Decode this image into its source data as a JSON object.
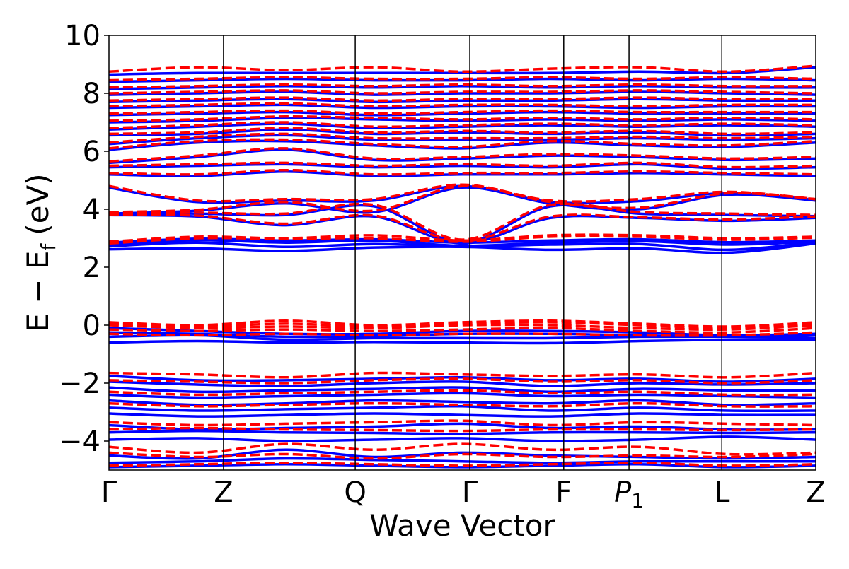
{
  "chart_data": {
    "type": "line",
    "title": "",
    "xlabel": "Wave Vector",
    "ylabel": "E − E",
    "ylabel_subscript": "f",
    "ylabel_unit": "(eV)",
    "ylim": [
      -5,
      10
    ],
    "yticks": [
      -4,
      -2,
      0,
      2,
      4,
      6,
      8,
      10
    ],
    "ytick_labels": [
      "−4",
      "−2",
      "0",
      "2",
      "4",
      "6",
      "8",
      "10"
    ],
    "k_points": [
      {
        "label": "Γ",
        "x": 0.0
      },
      {
        "label": "Z",
        "x": 1.0
      },
      {
        "label": "Q",
        "x": 2.15
      },
      {
        "label": "Γ",
        "x": 3.15
      },
      {
        "label": "F",
        "x": 3.97
      },
      {
        "label": "P",
        "sub": "1",
        "italic": true,
        "x": 4.54
      },
      {
        "label": "L",
        "x": 5.35
      },
      {
        "label": "Z",
        "x": 6.17
      }
    ],
    "xlim": [
      0,
      6.17
    ],
    "grid": false,
    "legend": "none",
    "colors": {
      "solid": "#0000ff",
      "dashed": "#ff0000",
      "frame": "#000000"
    },
    "series": [
      {
        "style": "solid",
        "color": "#0000ff",
        "bands": [
          [
            2.62,
            2.65,
            2.56,
            2.68,
            2.7,
            2.6,
            2.65,
            2.5,
            2.82
          ],
          [
            2.72,
            2.85,
            2.7,
            2.8,
            2.72,
            2.78,
            2.8,
            2.6,
            2.86
          ],
          [
            2.78,
            2.93,
            2.85,
            2.92,
            2.74,
            2.85,
            2.9,
            2.78,
            2.88
          ],
          [
            2.85,
            2.98,
            2.92,
            2.96,
            2.85,
            2.92,
            2.96,
            2.86,
            2.92
          ],
          [
            3.8,
            3.75,
            3.45,
            3.75,
            2.82,
            3.7,
            3.7,
            3.6,
            3.7
          ],
          [
            3.82,
            3.85,
            3.8,
            4.1,
            2.85,
            4.1,
            3.85,
            3.8,
            3.76
          ],
          [
            3.85,
            3.95,
            4.2,
            3.9,
            4.75,
            4.2,
            4.0,
            4.5,
            4.3
          ],
          [
            4.75,
            4.25,
            4.3,
            4.3,
            4.8,
            4.25,
            4.28,
            4.55,
            4.32
          ],
          [
            -0.1,
            -0.2,
            -0.3,
            -0.3,
            -0.2,
            -0.2,
            -0.25,
            -0.35,
            -0.3
          ],
          [
            -0.25,
            -0.3,
            -0.4,
            -0.38,
            -0.3,
            -0.3,
            -0.35,
            -0.4,
            -0.35
          ],
          [
            -0.4,
            -0.35,
            -0.5,
            -0.45,
            -0.45,
            -0.45,
            -0.4,
            -0.4,
            -0.45
          ],
          [
            -0.6,
            -0.55,
            -0.6,
            -0.58,
            -0.6,
            -0.62,
            -0.55,
            -0.5,
            -0.5
          ],
          [
            -1.75,
            -1.9,
            -1.9,
            -1.85,
            -1.8,
            -1.9,
            -1.85,
            -1.95,
            -1.85
          ],
          [
            -1.95,
            -2.05,
            -2.1,
            -2.0,
            -1.95,
            -2.1,
            -2.0,
            -2.05,
            -2.0
          ],
          [
            -2.15,
            -2.3,
            -2.25,
            -2.2,
            -2.15,
            -2.3,
            -2.2,
            -2.25,
            -2.25
          ],
          [
            -2.4,
            -2.5,
            -2.45,
            -2.4,
            -2.35,
            -2.45,
            -2.4,
            -2.45,
            -2.5
          ],
          [
            -2.6,
            -2.75,
            -2.7,
            -2.6,
            -2.65,
            -2.7,
            -2.6,
            -2.75,
            -2.7
          ],
          [
            -2.85,
            -2.95,
            -2.9,
            -2.85,
            -2.8,
            -2.95,
            -2.85,
            -2.95,
            -2.95
          ],
          [
            -3.05,
            -3.15,
            -3.1,
            -3.05,
            -3.1,
            -3.15,
            -3.05,
            -3.1,
            -3.1
          ],
          [
            -3.45,
            -3.6,
            -3.55,
            -3.5,
            -3.4,
            -3.55,
            -3.5,
            -3.6,
            -3.6
          ],
          [
            -3.7,
            -3.65,
            -3.7,
            -3.72,
            -3.75,
            -3.7,
            -3.7,
            -3.72,
            -3.7
          ],
          [
            -3.95,
            -3.9,
            -4.0,
            -3.95,
            -3.9,
            -4.0,
            -3.95,
            -3.85,
            -3.95
          ],
          [
            -4.5,
            -4.6,
            -4.3,
            -4.55,
            -4.4,
            -4.5,
            -4.55,
            -4.6,
            -4.55
          ],
          [
            -4.75,
            -4.7,
            -4.6,
            -4.65,
            -4.7,
            -4.75,
            -4.7,
            -4.7,
            -4.7
          ],
          [
            -4.9,
            -4.85,
            -4.8,
            -4.85,
            -4.9,
            -4.85,
            -4.8,
            -4.9,
            -4.85
          ],
          [
            5.2,
            5.15,
            5.3,
            5.15,
            5.2,
            5.2,
            5.25,
            5.2,
            5.15
          ],
          [
            5.45,
            5.5,
            5.55,
            5.45,
            5.5,
            5.45,
            5.55,
            5.4,
            5.45
          ],
          [
            5.6,
            5.8,
            6.05,
            5.7,
            5.75,
            5.85,
            5.8,
            5.7,
            5.75
          ],
          [
            6.05,
            6.3,
            6.35,
            6.2,
            6.1,
            6.3,
            6.2,
            6.15,
            6.3
          ],
          [
            6.25,
            6.45,
            6.55,
            6.4,
            6.4,
            6.4,
            6.45,
            6.4,
            6.45
          ],
          [
            6.55,
            6.6,
            6.75,
            6.6,
            6.65,
            6.6,
            6.65,
            6.55,
            6.6
          ],
          [
            6.75,
            6.85,
            6.95,
            6.8,
            6.85,
            6.9,
            6.85,
            6.9,
            6.85
          ],
          [
            7.0,
            7.05,
            7.15,
            7.1,
            7.05,
            7.1,
            7.05,
            7.1,
            7.05
          ],
          [
            7.25,
            7.3,
            7.35,
            7.25,
            7.3,
            7.35,
            7.3,
            7.3,
            7.3
          ],
          [
            7.5,
            7.55,
            7.6,
            7.5,
            7.55,
            7.55,
            7.5,
            7.55,
            7.55
          ],
          [
            7.7,
            7.75,
            7.8,
            7.7,
            7.75,
            7.75,
            7.8,
            7.75,
            7.75
          ],
          [
            7.95,
            8.0,
            8.05,
            7.95,
            8.0,
            8.0,
            8.05,
            8.0,
            7.95
          ],
          [
            8.15,
            8.2,
            8.25,
            8.2,
            8.25,
            8.2,
            8.25,
            8.2,
            8.2
          ],
          [
            8.4,
            8.45,
            8.5,
            8.45,
            8.45,
            8.5,
            8.45,
            8.5,
            8.45
          ],
          [
            8.65,
            8.7,
            8.7,
            8.7,
            8.7,
            8.7,
            8.75,
            8.7,
            8.9
          ]
        ]
      },
      {
        "style": "dashed",
        "color": "#ff0000",
        "bands": [
          [
            2.82,
            3.0,
            2.98,
            3.0,
            2.88,
            3.05,
            3.05,
            2.95,
            3.02
          ],
          [
            2.88,
            3.05,
            3.0,
            3.1,
            2.92,
            3.1,
            3.1,
            3.0,
            3.05
          ],
          [
            3.8,
            3.78,
            3.5,
            3.78,
            2.9,
            3.75,
            3.72,
            3.65,
            3.75
          ],
          [
            3.85,
            3.88,
            3.85,
            4.15,
            2.95,
            4.15,
            3.9,
            3.85,
            3.8
          ],
          [
            3.9,
            3.98,
            4.25,
            3.95,
            4.8,
            4.25,
            4.05,
            4.55,
            4.35
          ],
          [
            4.8,
            4.3,
            4.35,
            4.35,
            4.85,
            4.3,
            4.35,
            4.6,
            4.35
          ],
          [
            0.1,
            0.0,
            0.15,
            0.0,
            0.1,
            0.15,
            0.05,
            -0.05,
            0.1
          ],
          [
            0.05,
            -0.05,
            0.05,
            -0.05,
            0.05,
            0.1,
            0.0,
            -0.1,
            0.05
          ],
          [
            0.0,
            -0.1,
            -0.05,
            -0.1,
            0.0,
            0.0,
            -0.1,
            -0.15,
            0.0
          ],
          [
            -0.15,
            -0.2,
            -0.15,
            -0.2,
            -0.15,
            -0.1,
            -0.2,
            -0.25,
            -0.1
          ],
          [
            -0.3,
            -0.35,
            -0.3,
            -0.35,
            -0.3,
            -0.3,
            -0.35,
            -0.35,
            -0.25
          ],
          [
            -1.65,
            -1.7,
            -1.8,
            -1.65,
            -1.7,
            -1.75,
            -1.7,
            -1.8,
            -1.65
          ],
          [
            -1.9,
            -1.95,
            -2.0,
            -1.9,
            -1.85,
            -1.95,
            -1.9,
            -2.0,
            -1.9
          ],
          [
            -2.3,
            -2.4,
            -2.35,
            -2.3,
            -2.25,
            -2.35,
            -2.3,
            -2.4,
            -2.4
          ],
          [
            -2.7,
            -2.8,
            -2.75,
            -2.7,
            -2.75,
            -2.8,
            -2.7,
            -2.8,
            -2.8
          ],
          [
            -3.35,
            -3.45,
            -3.4,
            -3.35,
            -3.3,
            -3.45,
            -3.35,
            -3.4,
            -3.45
          ],
          [
            -3.6,
            -3.55,
            -3.6,
            -3.62,
            -3.65,
            -3.6,
            -3.6,
            -3.62,
            -3.6
          ],
          [
            -4.2,
            -4.4,
            -4.1,
            -4.3,
            -4.1,
            -4.3,
            -4.2,
            -4.45,
            -4.4
          ],
          [
            -4.4,
            -4.55,
            -4.45,
            -4.6,
            -4.45,
            -4.55,
            -4.5,
            -4.55,
            -4.45
          ],
          [
            -4.85,
            -4.8,
            -4.75,
            -4.8,
            -4.85,
            -4.8,
            -4.75,
            -4.85,
            -4.8
          ],
          [
            5.25,
            5.2,
            5.35,
            5.2,
            5.25,
            5.25,
            5.3,
            5.25,
            5.2
          ],
          [
            5.5,
            5.55,
            5.6,
            5.5,
            5.55,
            5.5,
            5.6,
            5.45,
            5.5
          ],
          [
            5.65,
            5.85,
            6.1,
            5.75,
            5.8,
            5.9,
            5.85,
            5.75,
            5.8
          ],
          [
            6.1,
            6.35,
            6.4,
            6.25,
            6.15,
            6.35,
            6.25,
            6.2,
            6.35
          ],
          [
            6.3,
            6.5,
            6.6,
            6.45,
            6.45,
            6.45,
            6.5,
            6.45,
            6.5
          ],
          [
            6.6,
            6.65,
            6.8,
            6.65,
            6.7,
            6.65,
            6.7,
            6.6,
            6.65
          ],
          [
            6.8,
            6.9,
            7.0,
            6.85,
            6.9,
            6.95,
            6.9,
            6.95,
            6.9
          ],
          [
            7.05,
            7.1,
            7.2,
            7.15,
            7.1,
            7.15,
            7.1,
            7.15,
            7.1
          ],
          [
            7.3,
            7.35,
            7.4,
            7.3,
            7.35,
            7.4,
            7.35,
            7.35,
            7.35
          ],
          [
            7.55,
            7.6,
            7.65,
            7.55,
            7.6,
            7.6,
            7.55,
            7.6,
            7.6
          ],
          [
            7.75,
            7.8,
            7.85,
            7.75,
            7.8,
            7.8,
            7.85,
            7.8,
            7.8
          ],
          [
            8.0,
            8.05,
            8.1,
            8.0,
            8.05,
            8.05,
            8.1,
            8.05,
            8.0
          ],
          [
            8.2,
            8.25,
            8.3,
            8.25,
            8.3,
            8.25,
            8.3,
            8.25,
            8.25
          ],
          [
            8.45,
            8.5,
            8.55,
            8.5,
            8.5,
            8.55,
            8.5,
            8.55,
            8.5
          ],
          [
            8.75,
            8.9,
            8.8,
            8.9,
            8.75,
            8.85,
            8.9,
            8.75,
            8.95
          ]
        ]
      }
    ]
  }
}
